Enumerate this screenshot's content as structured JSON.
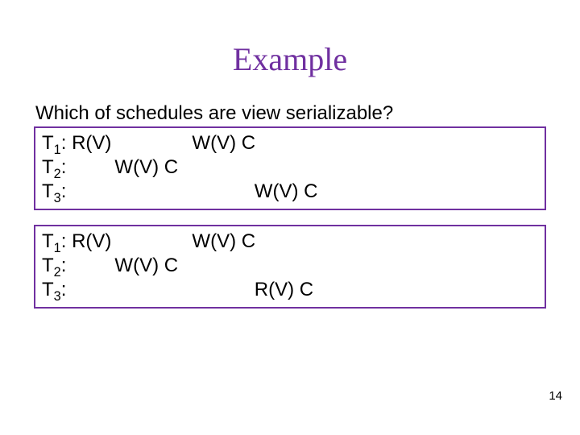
{
  "title": "Example",
  "title_color": "#7030a0",
  "question": "Which of schedules are view serializable?",
  "text_color": "#000000",
  "box_border_color": "#7030a0",
  "page_number": "14",
  "schedule_a": {
    "rows": [
      {
        "label": "T",
        "sub": "1",
        "after": ": R(V)               W(V) C"
      },
      {
        "label": "T",
        "sub": "2",
        "after": ":         W(V) C"
      },
      {
        "label": "T",
        "sub": "3",
        "after": ":                                   W(V) C"
      }
    ]
  },
  "schedule_b": {
    "rows": [
      {
        "label": "T",
        "sub": "1",
        "after": ": R(V)               W(V) C"
      },
      {
        "label": "T",
        "sub": "2",
        "after": ":         W(V) C"
      },
      {
        "label": "T",
        "sub": "3",
        "after": ":                                   R(V) C"
      }
    ]
  }
}
